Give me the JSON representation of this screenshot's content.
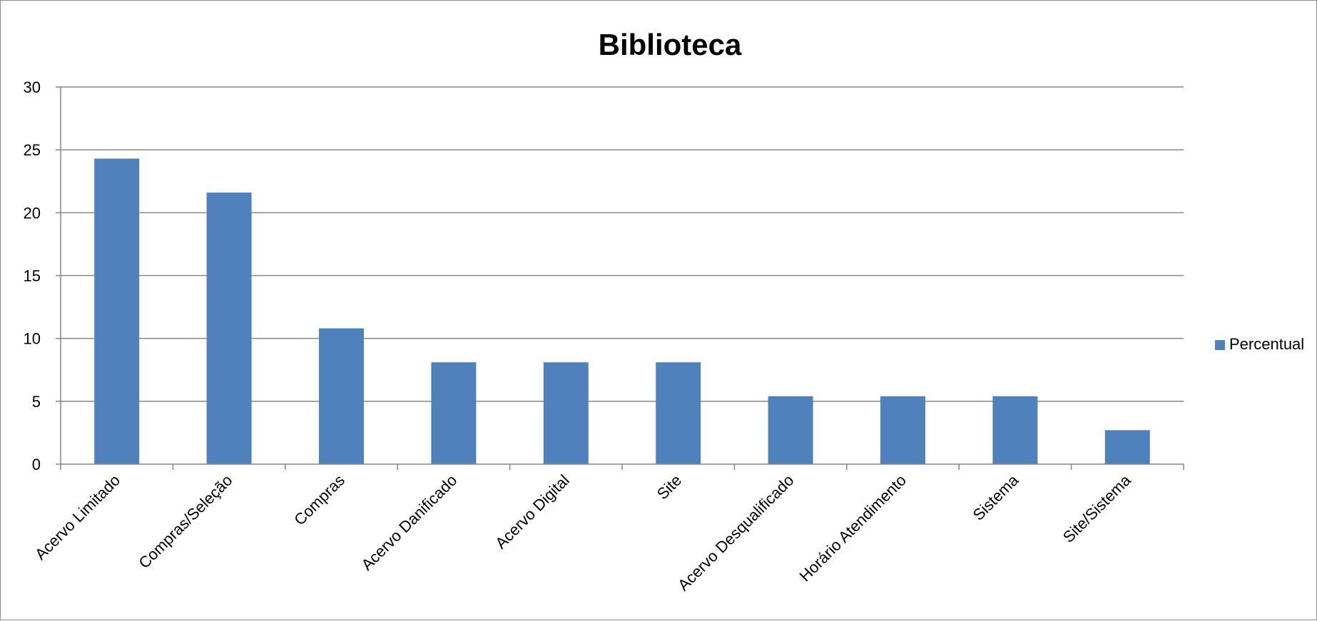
{
  "chart_data": {
    "type": "bar",
    "title": "Biblioteca",
    "xlabel": "",
    "ylabel": "",
    "categories": [
      "Acervo Limitado",
      "Compras/Seleção",
      "Compras",
      "Acervo Danificado",
      "Acervo Digital",
      "Site",
      "Acervo Desqualificado",
      "Horário Atendimento",
      "Sistema",
      "Site/Sistema"
    ],
    "series": [
      {
        "name": "Percentual",
        "color": "#4f81bd",
        "values": [
          24.3,
          21.6,
          10.8,
          8.1,
          8.1,
          8.1,
          5.4,
          5.4,
          5.4,
          2.7
        ]
      }
    ],
    "ylim": [
      0,
      30
    ],
    "yticks": [
      0,
      5,
      10,
      15,
      20,
      25,
      30
    ],
    "grid": true,
    "legend_position": "right"
  }
}
